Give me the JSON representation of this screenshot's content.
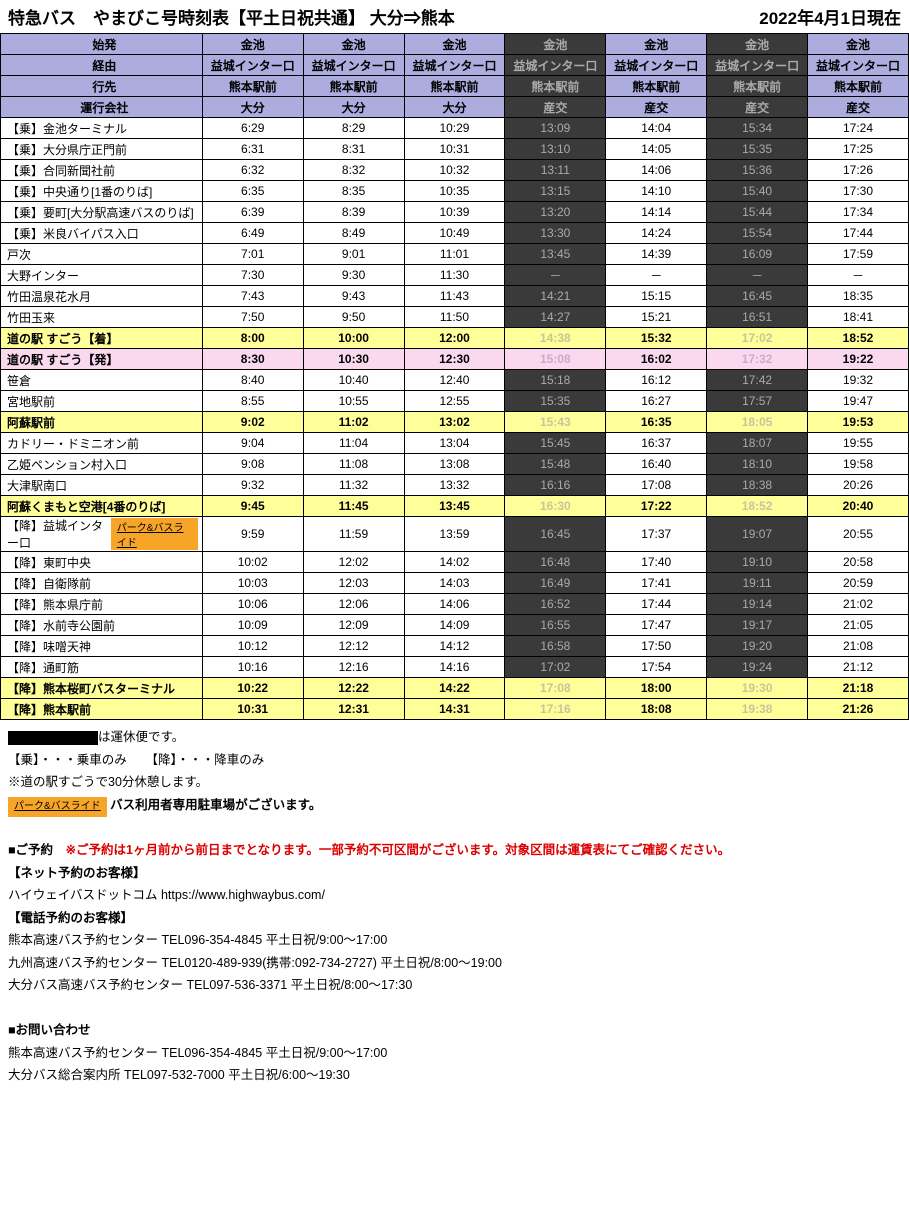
{
  "title_left": "特急バス　やまびこ号時刻表【平土日祝共通】 大分⇒熊本",
  "title_right": "2022年4月1日現在",
  "header_rows": [
    {
      "label": "始発",
      "cells": [
        "金池",
        "金池",
        "金池",
        "金池",
        "金池",
        "金池",
        "金池"
      ]
    },
    {
      "label": "経由",
      "cells": [
        "益城インター口",
        "益城インター口",
        "益城インター口",
        "益城インター口",
        "益城インター口",
        "益城インター口",
        "益城インター口"
      ]
    },
    {
      "label": "行先",
      "cells": [
        "熊本駅前",
        "熊本駅前",
        "熊本駅前",
        "熊本駅前",
        "熊本駅前",
        "熊本駅前",
        "熊本駅前"
      ]
    },
    {
      "label": "運行会社",
      "cells": [
        "大分",
        "大分",
        "大分",
        "産交",
        "産交",
        "産交",
        "産交"
      ]
    }
  ],
  "dark_cols": [
    3,
    5
  ],
  "rows": [
    {
      "s": "【乗】金池ターミナル",
      "t": [
        "6:29",
        "8:29",
        "10:29",
        "13:09",
        "14:04",
        "15:34",
        "17:24"
      ]
    },
    {
      "s": "【乗】大分県庁正門前",
      "t": [
        "6:31",
        "8:31",
        "10:31",
        "13:10",
        "14:05",
        "15:35",
        "17:25"
      ]
    },
    {
      "s": "【乗】合同新聞社前",
      "t": [
        "6:32",
        "8:32",
        "10:32",
        "13:11",
        "14:06",
        "15:36",
        "17:26"
      ]
    },
    {
      "s": "【乗】中央通り[1番のりば]",
      "t": [
        "6:35",
        "8:35",
        "10:35",
        "13:15",
        "14:10",
        "15:40",
        "17:30"
      ]
    },
    {
      "s": "【乗】要町[大分駅高速バスのりば]",
      "t": [
        "6:39",
        "8:39",
        "10:39",
        "13:20",
        "14:14",
        "15:44",
        "17:34"
      ]
    },
    {
      "s": "【乗】米良バイパス入口",
      "t": [
        "6:49",
        "8:49",
        "10:49",
        "13:30",
        "14:24",
        "15:54",
        "17:44"
      ]
    },
    {
      "s": "戸次",
      "t": [
        "7:01",
        "9:01",
        "11:01",
        "13:45",
        "14:39",
        "16:09",
        "17:59"
      ]
    },
    {
      "s": "大野インター",
      "t": [
        "7:30",
        "9:30",
        "11:30",
        "－",
        "－",
        "－",
        "－"
      ]
    },
    {
      "s": "竹田温泉花水月",
      "t": [
        "7:43",
        "9:43",
        "11:43",
        "14:21",
        "15:15",
        "16:45",
        "18:35"
      ]
    },
    {
      "s": "竹田玉来",
      "t": [
        "7:50",
        "9:50",
        "11:50",
        "14:27",
        "15:21",
        "16:51",
        "18:41"
      ]
    },
    {
      "s": "道の駅 すごう【着】",
      "hl": "yellow",
      "t": [
        "8:00",
        "10:00",
        "12:00",
        "14:38",
        "15:32",
        "17:02",
        "18:52"
      ]
    },
    {
      "s": "道の駅 すごう【発】",
      "hl": "pink",
      "t": [
        "8:30",
        "10:30",
        "12:30",
        "15:08",
        "16:02",
        "17:32",
        "19:22"
      ]
    },
    {
      "s": "笹倉",
      "t": [
        "8:40",
        "10:40",
        "12:40",
        "15:18",
        "16:12",
        "17:42",
        "19:32"
      ]
    },
    {
      "s": "宮地駅前",
      "t": [
        "8:55",
        "10:55",
        "12:55",
        "15:35",
        "16:27",
        "17:57",
        "19:47"
      ]
    },
    {
      "s": "阿蘇駅前",
      "hl": "yellow",
      "t": [
        "9:02",
        "11:02",
        "13:02",
        "15:43",
        "16:35",
        "18:05",
        "19:53"
      ]
    },
    {
      "s": "カドリー・ドミニオン前",
      "t": [
        "9:04",
        "11:04",
        "13:04",
        "15:45",
        "16:37",
        "18:07",
        "19:55"
      ]
    },
    {
      "s": "乙姫ペンション村入口",
      "t": [
        "9:08",
        "11:08",
        "13:08",
        "15:48",
        "16:40",
        "18:10",
        "19:58"
      ]
    },
    {
      "s": "大津駅南口",
      "t": [
        "9:32",
        "11:32",
        "13:32",
        "16:16",
        "17:08",
        "18:38",
        "20:26"
      ]
    },
    {
      "s": "阿蘇くまもと空港[4番のりば]",
      "hl": "yellow",
      "t": [
        "9:45",
        "11:45",
        "13:45",
        "16:30",
        "17:22",
        "18:52",
        "20:40"
      ]
    },
    {
      "s": "【降】益城インター口",
      "badge": true,
      "t": [
        "9:59",
        "11:59",
        "13:59",
        "16:45",
        "17:37",
        "19:07",
        "20:55"
      ]
    },
    {
      "s": "【降】東町中央",
      "t": [
        "10:02",
        "12:02",
        "14:02",
        "16:48",
        "17:40",
        "19:10",
        "20:58"
      ]
    },
    {
      "s": "【降】自衛隊前",
      "t": [
        "10:03",
        "12:03",
        "14:03",
        "16:49",
        "17:41",
        "19:11",
        "20:59"
      ]
    },
    {
      "s": "【降】熊本県庁前",
      "t": [
        "10:06",
        "12:06",
        "14:06",
        "16:52",
        "17:44",
        "19:14",
        "21:02"
      ]
    },
    {
      "s": "【降】水前寺公園前",
      "t": [
        "10:09",
        "12:09",
        "14:09",
        "16:55",
        "17:47",
        "19:17",
        "21:05"
      ]
    },
    {
      "s": "【降】味噌天神",
      "t": [
        "10:12",
        "12:12",
        "14:12",
        "16:58",
        "17:50",
        "19:20",
        "21:08"
      ]
    },
    {
      "s": "【降】通町筋",
      "t": [
        "10:16",
        "12:16",
        "14:16",
        "17:02",
        "17:54",
        "19:24",
        "21:12"
      ]
    },
    {
      "s": "【降】熊本桜町バスターミナル",
      "hl": "yellow",
      "t": [
        "10:22",
        "12:22",
        "14:22",
        "17:08",
        "18:00",
        "19:30",
        "21:18"
      ]
    },
    {
      "s": "【降】熊本駅前",
      "hl": "yellow",
      "t": [
        "10:31",
        "12:31",
        "14:31",
        "17:16",
        "18:08",
        "19:38",
        "21:26"
      ]
    }
  ],
  "badge_text": "パーク&バスライド",
  "notes": {
    "n1": "は運休便です。",
    "n2": "【乗】・・・乗車のみ　　【降】・・・降車のみ",
    "n3": "※道の駅すごうで30分休憩します。",
    "n4": "バス利用者専用駐車場がございます。",
    "r_title": "■ご予約",
    "r_red": "※ご予約は1ヶ月前から前日までとなります。一部予約不可区間がございます。対象区間は運賃表にてご確認ください。",
    "r1": "【ネット予約のお客様】",
    "r2": "ハイウェイバスドットコム https://www.highwaybus.com/",
    "r3": "【電話予約のお客様】",
    "r4": "熊本高速バス予約センター TEL096-354-4845 平土日祝/9:00～17:00",
    "r5": "九州高速バス予約センター TEL0120-489-939(携帯:092-734-2727) 平土日祝/8:00～19:00",
    "r6": "大分バス高速バス予約センター  TEL097-536-3371  平土日祝/8:00～17:30",
    "c_title": "■お問い合わせ",
    "c1": "熊本高速バス予約センター TEL096-354-4845 平土日祝/9:00～17:00",
    "c2": "大分バス総合案内所  TEL097-532-7000  平土日祝/6:00～19:30"
  }
}
